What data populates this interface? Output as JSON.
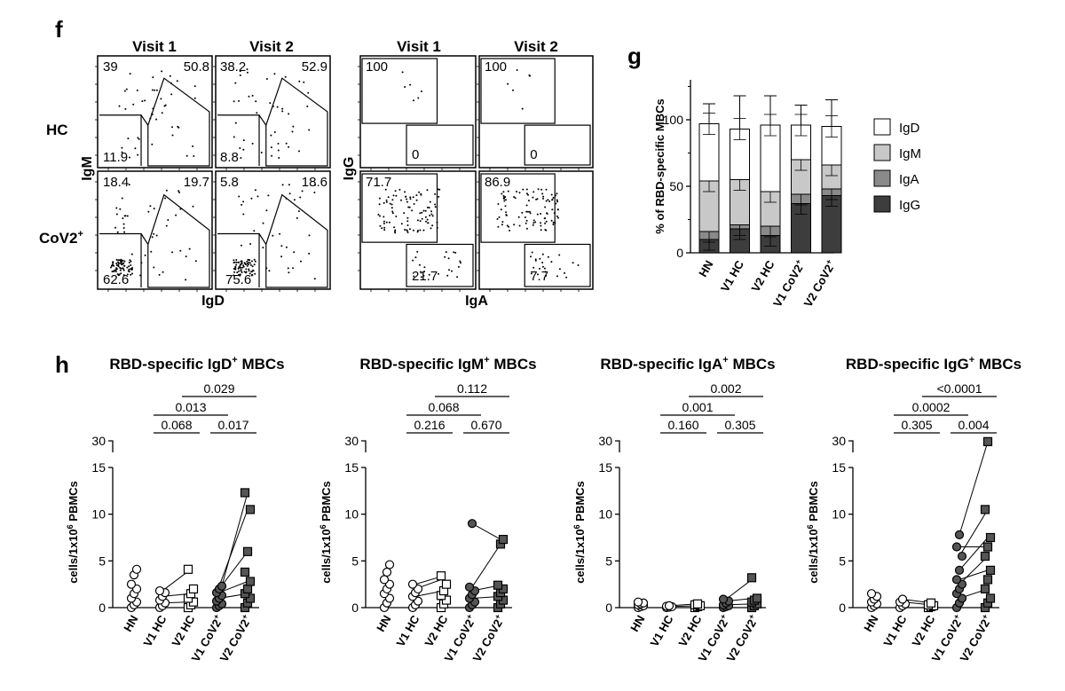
{
  "panel_letters": {
    "f": "f",
    "g": "g",
    "h": "h"
  },
  "flow": {
    "col_titles": [
      "Visit 1",
      "Visit 2",
      "Visit 1",
      "Visit 2"
    ],
    "row_labels": {
      "hc": "HC",
      "cov": "CoV2",
      "cov_sup": "+"
    },
    "axis_labels": {
      "igm": "IgM",
      "igd": "IgD",
      "igg": "IgG",
      "iga": "IgA"
    },
    "plots": [
      {
        "values": [
          "39",
          "50.8",
          "11.9"
        ]
      },
      {
        "values": [
          "38.2",
          "52.9",
          "8.8"
        ]
      },
      {
        "values": [
          "100",
          "0"
        ]
      },
      {
        "values": [
          "100",
          "0"
        ]
      },
      {
        "values": [
          "18.4",
          "19.7",
          "62.6"
        ]
      },
      {
        "values": [
          "5.8",
          "18.6",
          "75.6"
        ]
      },
      {
        "values": [
          "71.7",
          "21.7"
        ]
      },
      {
        "values": [
          "86.9",
          "7.7"
        ]
      }
    ]
  },
  "chart_data": [
    {
      "type": "bar",
      "stacked": true,
      "ylabel": "% of RBD-specific MBCs",
      "ylim": [
        0,
        130
      ],
      "yticks": [
        "0",
        "50",
        "100"
      ],
      "categories": [
        "HN",
        "V1 HC",
        "V2 HC",
        "V1 CoV2",
        "V2 CoV2"
      ],
      "category_superscripts": [
        "",
        "",
        "",
        "+",
        "+"
      ],
      "series": [
        {
          "name": "IgG",
          "color": "#3d3d3d",
          "values": [
            10,
            18,
            13,
            37,
            43
          ]
        },
        {
          "name": "IgA",
          "color": "#8a8a8a",
          "values": [
            6,
            3,
            7,
            7,
            5
          ]
        },
        {
          "name": "IgM",
          "color": "#c8c8c8",
          "values": [
            38,
            34,
            26,
            26,
            18
          ]
        },
        {
          "name": "IgD",
          "color": "#ffffff",
          "values": [
            43,
            38,
            50,
            26,
            29
          ]
        }
      ],
      "error_top": [
        112,
        118,
        118,
        111,
        115
      ],
      "legend_order": [
        "IgD",
        "IgM",
        "IgA",
        "IgG"
      ]
    },
    {
      "type": "scatter",
      "title": "RBD-specific IgD",
      "title_sup": "+",
      "title_suffix": " MBCs",
      "ylabel": "cells/1x10",
      "ylabel_sup": "6",
      "ylabel_suffix": " PBMCs",
      "yticks": [
        "0",
        "5",
        "10",
        "15",
        "30"
      ],
      "categories": [
        "HN",
        "V1 HC",
        "V2 HC",
        "V1 CoV2",
        "V2 CoV2"
      ],
      "pvalues": [
        {
          "from": 2,
          "to": 4,
          "label": "0.029"
        },
        {
          "from": 1,
          "to": 3,
          "label": "0.013"
        },
        {
          "from": 1,
          "to": 2,
          "label": "0.068"
        },
        {
          "from": 3,
          "to": 4,
          "label": "0.017"
        }
      ],
      "groups": [
        [
          0,
          0.3,
          0.6,
          1.0,
          1.5,
          2.0,
          2.5,
          3.5,
          4.1
        ],
        [
          0,
          0.2,
          0.5,
          0.8,
          1.2,
          1.6,
          1.8
        ],
        [
          0,
          0.3,
          0.6,
          1.0,
          1.5,
          2.0,
          4.1
        ],
        [
          0,
          0.2,
          0.4,
          0.7,
          1.0,
          1.3,
          1.6,
          2.0,
          2.3
        ],
        [
          0,
          0.5,
          1.0,
          1.5,
          2.0,
          2.8,
          3.8,
          6.0,
          10.5,
          12.3
        ]
      ],
      "pairs": [
        [
          [
            0,
            0
          ],
          [
            0.5,
            0.6
          ],
          [
            1.2,
            1.5
          ],
          [
            1.8,
            4.1
          ]
        ],
        [
          [
            0,
            0
          ],
          [
            1.0,
            1.5
          ],
          [
            1.6,
            2.8
          ],
          [
            2.0,
            6.0
          ],
          [
            2.3,
            10.5
          ],
          [
            1.3,
            12.3
          ]
        ]
      ]
    },
    {
      "type": "scatter",
      "title": "RBD-specific IgM",
      "title_sup": "+",
      "title_suffix": " MBCs",
      "ylabel": "cells/1x10",
      "ylabel_sup": "6",
      "ylabel_suffix": " PBMCs",
      "yticks": [
        "0",
        "5",
        "10",
        "15",
        "30"
      ],
      "categories": [
        "HN",
        "V1 HC",
        "V2 HC",
        "V1 CoV2",
        "V2 CoV2"
      ],
      "pvalues": [
        {
          "from": 2,
          "to": 4,
          "label": "0.112"
        },
        {
          "from": 1,
          "to": 3,
          "label": "0.068"
        },
        {
          "from": 1,
          "to": 2,
          "label": "0.216"
        },
        {
          "from": 3,
          "to": 4,
          "label": "0.670"
        }
      ],
      "groups": [
        [
          0,
          0.5,
          1.0,
          1.5,
          2.0,
          2.5,
          3.0,
          3.8,
          4.6
        ],
        [
          0,
          0.3,
          0.7,
          1.2,
          1.6,
          2.0,
          2.5
        ],
        [
          0,
          0.4,
          0.8,
          1.3,
          1.8,
          2.5,
          3.4
        ],
        [
          0,
          0.3,
          0.6,
          1.0,
          1.4,
          1.8,
          2.2,
          9.0
        ],
        [
          0,
          0.4,
          0.8,
          1.2,
          1.6,
          2.0,
          2.4,
          6.8,
          7.3
        ]
      ],
      "pairs": [
        [
          [
            0,
            0
          ],
          [
            1.2,
            1.8
          ],
          [
            2.0,
            3.1
          ],
          [
            2.5,
            3.4
          ]
        ],
        [
          [
            0,
            0
          ],
          [
            1.0,
            1.2
          ],
          [
            1.8,
            2.4
          ],
          [
            2.2,
            6.8
          ],
          [
            9.0,
            7.3
          ]
        ]
      ]
    },
    {
      "type": "scatter",
      "title": "RBD-specific IgA",
      "title_sup": "+",
      "title_suffix": " MBCs",
      "ylabel": "cells/1x10",
      "ylabel_sup": "6",
      "ylabel_suffix": " PBMCs",
      "yticks": [
        "0",
        "5",
        "10",
        "15",
        "30"
      ],
      "categories": [
        "HN",
        "V1 HC",
        "V2 HC",
        "V1 CoV2",
        "V2 CoV2"
      ],
      "pvalues": [
        {
          "from": 2,
          "to": 4,
          "label": "0.002"
        },
        {
          "from": 1,
          "to": 3,
          "label": "0.001"
        },
        {
          "from": 1,
          "to": 2,
          "label": "0.160"
        },
        {
          "from": 3,
          "to": 4,
          "label": "0.305"
        }
      ],
      "groups": [
        [
          0,
          0.1,
          0.2,
          0.3,
          0.4,
          0.5,
          0.6
        ],
        [
          0,
          0.05,
          0.1,
          0.15,
          0.2
        ],
        [
          0,
          0.1,
          0.2,
          0.3,
          0.4
        ],
        [
          0,
          0.1,
          0.2,
          0.3,
          0.5,
          0.7,
          0.9
        ],
        [
          0,
          0.2,
          0.4,
          0.6,
          0.8,
          1.0,
          3.2
        ]
      ],
      "pairs": [
        [
          [
            0,
            0
          ],
          [
            0.1,
            0.2
          ],
          [
            0.2,
            0.4
          ]
        ],
        [
          [
            0,
            0
          ],
          [
            0.3,
            0.4
          ],
          [
            0.7,
            1.0
          ],
          [
            0.9,
            3.2
          ]
        ]
      ]
    },
    {
      "type": "scatter",
      "title": "RBD-specific IgG",
      "title_sup": "+",
      "title_suffix": " MBCs",
      "ylabel": "cells/1x10",
      "ylabel_sup": "6",
      "ylabel_suffix": " PBMCs",
      "yticks": [
        "0",
        "5",
        "10",
        "15",
        "30"
      ],
      "categories": [
        "HN",
        "V1 HC",
        "V2 HC",
        "V1 CoV2",
        "V2 CoV2"
      ],
      "pvalues": [
        {
          "from": 2,
          "to": 4,
          "label": "<0.0001"
        },
        {
          "from": 1,
          "to": 3,
          "label": "0.0002"
        },
        {
          "from": 1,
          "to": 2,
          "label": "0.305"
        },
        {
          "from": 3,
          "to": 4,
          "label": "0.004"
        }
      ],
      "groups": [
        [
          0,
          0.2,
          0.4,
          0.6,
          0.9,
          1.2,
          1.5
        ],
        [
          0,
          0.2,
          0.4,
          0.6,
          0.9
        ],
        [
          0,
          0.1,
          0.2,
          0.3,
          0.5
        ],
        [
          0,
          0.5,
          1.0,
          1.5,
          2.0,
          2.5,
          3.0,
          4.0,
          5.5,
          6.5,
          7.8
        ],
        [
          0,
          0.5,
          1.0,
          2.0,
          3.0,
          4.0,
          5.5,
          6.5,
          7.5,
          10.5,
          29
        ]
      ],
      "pairs": [
        [
          [
            0,
            0
          ],
          [
            0.6,
            0.3
          ],
          [
            0.9,
            0.5
          ]
        ],
        [
          [
            0,
            0
          ],
          [
            1.0,
            2.0
          ],
          [
            2.5,
            5.5
          ],
          [
            4.0,
            7.5
          ],
          [
            5.5,
            10.5
          ],
          [
            7.8,
            29
          ],
          [
            6.5,
            6.5
          ],
          [
            3.0,
            4.0
          ]
        ]
      ]
    }
  ]
}
